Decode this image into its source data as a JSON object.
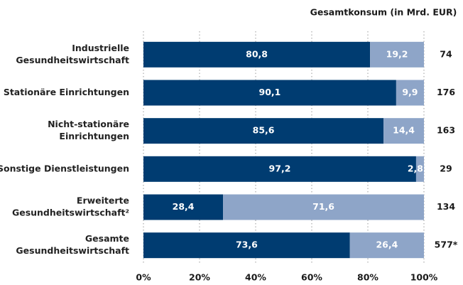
{
  "chart_data": {
    "type": "stacked_barh",
    "categories": [
      [
        "Industrielle",
        "Gesundheitswirtschaft"
      ],
      [
        "Stationäre Einrichtungen"
      ],
      [
        "Nicht-stationäre",
        "Einrichtungen"
      ],
      [
        "Sonstige Dienstleistungen"
      ],
      [
        "Erweiterte",
        "Gesundheitswirtschaft²"
      ],
      [
        "Gesamte",
        "Gesundheitswirtschaft"
      ]
    ],
    "series": [
      {
        "color": "#003c71",
        "values": [
          80.8,
          90.1,
          85.6,
          97.2,
          28.4,
          73.6
        ],
        "value_labels": [
          "80,8",
          "90,1",
          "85,6",
          "97,2",
          "28,4",
          "73,6"
        ]
      },
      {
        "color": "#8ea5c8",
        "values": [
          19.2,
          9.9,
          14.4,
          2.8,
          71.6,
          26.4
        ],
        "value_labels": [
          "19,2",
          "9,9",
          "14,4",
          "2,8",
          "71,6",
          "26,4"
        ]
      }
    ],
    "totals": {
      "title": "Gesamtkonsum (in Mrd. EUR)",
      "values": [
        74,
        176,
        163,
        29,
        134,
        577
      ],
      "value_labels": [
        "74",
        "176",
        "163",
        "29",
        "134",
        "577*"
      ]
    },
    "xlim": [
      0,
      100
    ],
    "xticks": [
      {
        "value": 0,
        "label": "0%"
      },
      {
        "value": 20,
        "label": "20%"
      },
      {
        "value": 40,
        "label": "40%"
      },
      {
        "value": 60,
        "label": "60%"
      },
      {
        "value": 80,
        "label": "80%"
      },
      {
        "value": 100,
        "label": "100%"
      }
    ],
    "grid": true
  }
}
